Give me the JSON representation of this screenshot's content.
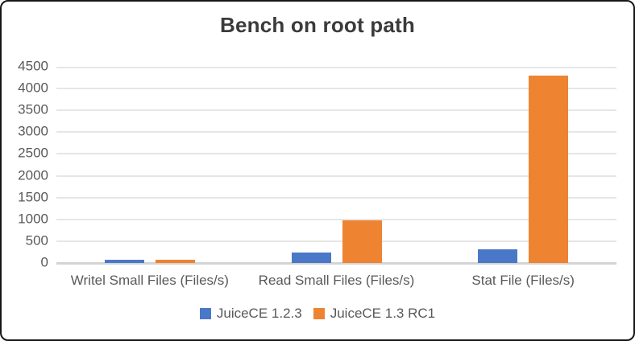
{
  "figure": {
    "title": "Bench on root path"
  },
  "colors": {
    "series_blue": "#4A78C8",
    "series_orange": "#EE8332",
    "gridline": "#E6E6E6",
    "baseline": "#D4D4D4",
    "axis_text": "#595959",
    "title_text": "#3B3B3B",
    "border": "#161616",
    "background": "#FFFFFF"
  },
  "chart_data": {
    "type": "bar",
    "title": "Bench on root path",
    "categories": [
      "Writel Small Files (Files/s)",
      "Read Small Files (Files/s)",
      "Stat File (Files/s)"
    ],
    "series": [
      {
        "name": "JuiceCE 1.2.3",
        "color": "#4A78C8",
        "values": [
          70,
          235,
          310
        ]
      },
      {
        "name": "JuiceCE 1.3 RC1",
        "color": "#EE8332",
        "values": [
          65,
          985,
          4290
        ]
      }
    ],
    "xlabel": "",
    "ylabel": "",
    "ylim": [
      0,
      4500
    ],
    "ytick_step": 500,
    "ytick_labels": [
      "0",
      "500",
      "1000",
      "1500",
      "2000",
      "2500",
      "3000",
      "3500",
      "4000",
      "4500"
    ],
    "grid": true,
    "legend_position": "bottom"
  }
}
